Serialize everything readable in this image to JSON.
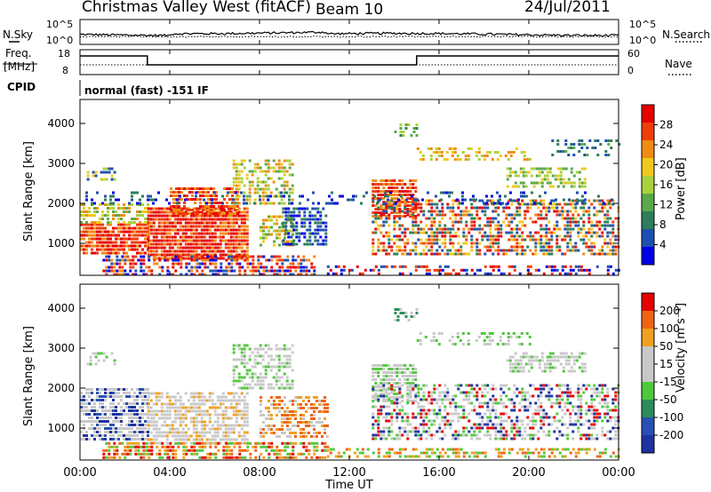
{
  "header": {
    "title": "Christmas Valley West (fitACF)",
    "beam": "Beam 10",
    "date": "24/Jul/2011"
  },
  "chart_data": [
    {
      "type": "line",
      "panel": "noise",
      "left_label": "N.Sky",
      "right_label": "N.Search",
      "left_ticks": [
        "10^5",
        "10^0"
      ],
      "right_ticks": [
        "10^5",
        "10^0"
      ]
    },
    {
      "type": "line",
      "panel": "frequency",
      "left_label_1": "Freq.",
      "left_label_2": "[MHz]",
      "right_label": "Nave",
      "left_ticks": [
        "18",
        "8"
      ],
      "right_ticks": [
        "60",
        "0"
      ],
      "freq_segments": [
        {
          "x0": 0,
          "x1": 3.0,
          "level": "high"
        },
        {
          "x0": 3.0,
          "x1": 15.0,
          "level": "low"
        },
        {
          "x0": 15.0,
          "x1": 24,
          "level": "high"
        }
      ]
    },
    {
      "type": "text",
      "panel": "cpid",
      "label": "CPID",
      "text": "normal (fast) -151 IF"
    },
    {
      "type": "heatmap",
      "panel": "power",
      "ylabel": "Slant Range [km]",
      "ylim": [
        200,
        4600
      ],
      "yticks": [
        1000,
        2000,
        3000,
        4000
      ],
      "colorbar_label": "Power [dB]",
      "colorbar_ticks": [
        "28",
        "24",
        "20",
        "16",
        "12",
        "8",
        "4"
      ],
      "colors": [
        "#0000e6",
        "#1e4fb0",
        "#2d7d5a",
        "#5aa84a",
        "#a8d23c",
        "#f0c81e",
        "#f08c14",
        "#f03c0a",
        "#e60000"
      ]
    },
    {
      "type": "heatmap",
      "panel": "velocity",
      "ylabel": "Slant Range [km]",
      "ylim": [
        200,
        4600
      ],
      "yticks": [
        1000,
        2000,
        3000,
        4000
      ],
      "colorbar_label": "Velocity [m s⁻¹]",
      "colorbar_ticks": [
        "200",
        "100",
        "50",
        "15",
        "-15",
        "-50",
        "-100",
        "-200"
      ],
      "colors": [
        "#1e32a0",
        "#2850b4",
        "#2d8c5a",
        "#50c83c",
        "#c8c8c8",
        "#c8c8c8",
        "#f0a01e",
        "#f06414",
        "#e60000"
      ]
    }
  ],
  "x_axis": {
    "label": "Time UT",
    "ticks": [
      "00:00",
      "04:00",
      "08:00",
      "12:00",
      "16:00",
      "20:00",
      "00:00"
    ],
    "xlim": [
      0,
      24
    ]
  }
}
